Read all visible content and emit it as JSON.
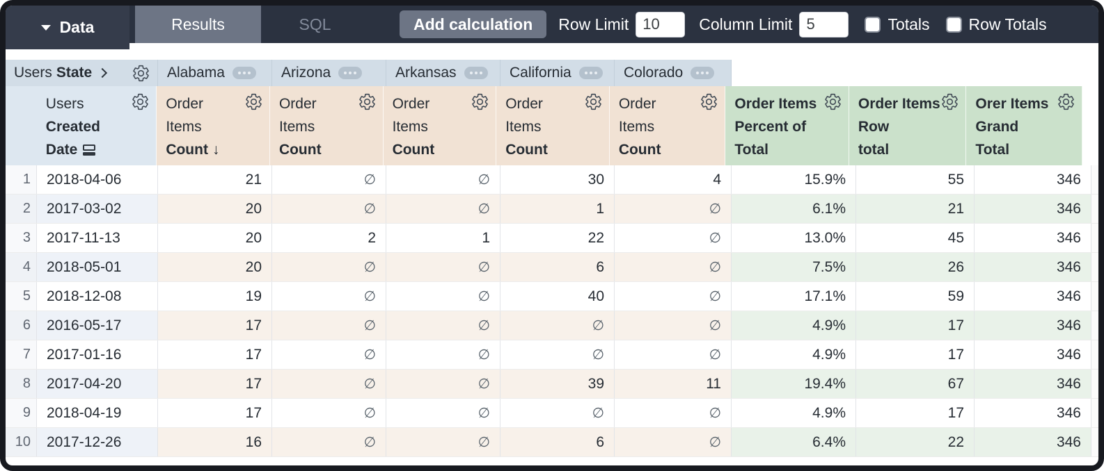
{
  "toolbar": {
    "data_tab": "Data",
    "results_tab": "Results",
    "sql_tab": "SQL",
    "add_calculation_button": "Add calculation",
    "row_limit_label": "Row Limit",
    "row_limit_value": "10",
    "column_limit_label": "Column Limit",
    "column_limit_value": "5",
    "totals_checkbox_label": "Totals",
    "row_totals_checkbox_label": "Row Totals"
  },
  "pivot_header": {
    "view": "Users",
    "field": "State",
    "values": [
      "Alabama",
      "Arizona",
      "Arkansas",
      "California",
      "Colorado"
    ]
  },
  "row_dimension_header": {
    "line1": "Users",
    "line2": "Created",
    "line3": "Date"
  },
  "measure_header": {
    "line1": "Order",
    "line2": "Items",
    "line3": "Count",
    "sort_arrow": "↓"
  },
  "calc_headers": [
    {
      "line1": "Order Items",
      "line2": "Percent of",
      "line3": "Total"
    },
    {
      "line1": "Order Items",
      "line2": "Row",
      "line3": "total"
    },
    {
      "line1": "Orer Items",
      "line2": "Grand",
      "line3": "Total"
    }
  ],
  "null_symbol": "∅",
  "table": {
    "rows": [
      {
        "num": "1",
        "date": "2018-04-06",
        "states": [
          "21",
          "∅",
          "∅",
          "30",
          "4"
        ],
        "percent_of_total": "15.9%",
        "row_total": "55",
        "grand_total": "346"
      },
      {
        "num": "2",
        "date": "2017-03-02",
        "states": [
          "20",
          "∅",
          "∅",
          "1",
          "∅"
        ],
        "percent_of_total": "6.1%",
        "row_total": "21",
        "grand_total": "346"
      },
      {
        "num": "3",
        "date": "2017-11-13",
        "states": [
          "20",
          "2",
          "1",
          "22",
          "∅"
        ],
        "percent_of_total": "13.0%",
        "row_total": "45",
        "grand_total": "346"
      },
      {
        "num": "4",
        "date": "2018-05-01",
        "states": [
          "20",
          "∅",
          "∅",
          "6",
          "∅"
        ],
        "percent_of_total": "7.5%",
        "row_total": "26",
        "grand_total": "346"
      },
      {
        "num": "5",
        "date": "2018-12-08",
        "states": [
          "19",
          "∅",
          "∅",
          "40",
          "∅"
        ],
        "percent_of_total": "17.1%",
        "row_total": "59",
        "grand_total": "346"
      },
      {
        "num": "6",
        "date": "2016-05-17",
        "states": [
          "17",
          "∅",
          "∅",
          "∅",
          "∅"
        ],
        "percent_of_total": "4.9%",
        "row_total": "17",
        "grand_total": "346"
      },
      {
        "num": "7",
        "date": "2017-01-16",
        "states": [
          "17",
          "∅",
          "∅",
          "∅",
          "∅"
        ],
        "percent_of_total": "4.9%",
        "row_total": "17",
        "grand_total": "346"
      },
      {
        "num": "8",
        "date": "2017-04-20",
        "states": [
          "17",
          "∅",
          "∅",
          "39",
          "11"
        ],
        "percent_of_total": "19.4%",
        "row_total": "67",
        "grand_total": "346"
      },
      {
        "num": "9",
        "date": "2018-04-19",
        "states": [
          "17",
          "∅",
          "∅",
          "∅",
          "∅"
        ],
        "percent_of_total": "4.9%",
        "row_total": "17",
        "grand_total": "346"
      },
      {
        "num": "10",
        "date": "2017-12-26",
        "states": [
          "16",
          "∅",
          "∅",
          "6",
          "∅"
        ],
        "percent_of_total": "6.4%",
        "row_total": "22",
        "grand_total": "346"
      }
    ]
  },
  "colors": {
    "topbar_bg": "#2b3240",
    "active_tab_bg": "#6d7585",
    "pivot_header_bg": "#d2dde7",
    "dimension_header_bg": "#dde7f0",
    "measure_header_bg": "#f1e2d4",
    "calc_header_bg": "#cbe1cb",
    "stripe_blue": "#eef2f8",
    "stripe_peach": "#f8f1ea",
    "stripe_green": "#e9f2e9"
  }
}
